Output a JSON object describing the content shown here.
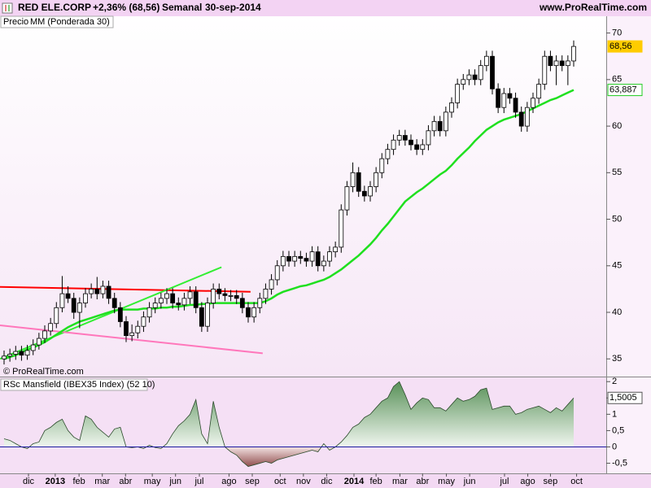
{
  "header": {
    "name": "RED ELE.CORP",
    "change": "+2,36% (68,56)",
    "period": "Semanal",
    "date": "30-sep-2014",
    "site": "www.ProRealTime.com"
  },
  "chart_data": [
    {
      "type": "candlestick",
      "price_name": "Precio",
      "watermark": "© ProRealTime.com",
      "xlim": [
        -0.7,
        103.6
      ],
      "ylim": [
        33.1,
        71.8
      ],
      "yticks": [
        35,
        40,
        45,
        50,
        55,
        60,
        65,
        70
      ],
      "open": [
        35.0,
        35.3,
        35.5,
        35.8,
        35.4,
        35.9,
        36.5,
        37.2,
        38.0,
        38.8,
        40.5,
        42.0,
        41.5,
        40.0,
        41.0,
        42.0,
        42.5,
        42.0,
        42.8,
        41.5,
        40.5,
        39.0,
        37.5,
        37.8,
        38.5,
        39.5,
        40.5,
        41.0,
        41.5,
        42.0,
        41.0,
        40.8,
        41.5,
        42.2,
        40.5,
        38.5,
        41.0,
        42.5,
        42.0,
        41.8,
        41.8,
        41.5,
        40.5,
        39.5,
        40.5,
        41.5,
        42.5,
        43.5,
        45.0,
        46.0,
        45.5,
        46.0,
        45.8,
        45.5,
        46.5,
        45.0,
        45.5,
        46.5,
        47.0,
        51.0,
        53.5,
        55.0,
        53.0,
        52.5,
        53.5,
        55.0,
        56.5,
        57.5,
        58.5,
        59.0,
        58.5,
        58.0,
        57.5,
        58.0,
        59.5,
        60.5,
        59.5,
        61.5,
        62.5,
        64.5,
        65.0,
        65.5,
        65.0,
        66.5,
        67.5,
        64.0,
        62.0,
        63.5,
        63.0,
        61.5,
        60.0,
        62.0,
        63.0,
        64.5,
        67.5,
        66.5,
        67.0,
        66.5,
        67.0
      ],
      "close": [
        35.3,
        35.5,
        35.8,
        35.4,
        35.9,
        36.5,
        37.2,
        38.0,
        38.8,
        40.5,
        42.0,
        41.5,
        40.0,
        41.0,
        42.0,
        42.5,
        42.0,
        42.8,
        41.5,
        40.5,
        39.0,
        37.5,
        37.8,
        38.5,
        39.5,
        40.5,
        41.0,
        41.5,
        42.0,
        41.0,
        40.8,
        41.5,
        42.2,
        40.5,
        38.5,
        41.0,
        42.5,
        42.0,
        41.8,
        41.8,
        41.5,
        40.5,
        39.5,
        40.5,
        41.5,
        42.5,
        43.5,
        45.0,
        46.0,
        45.5,
        46.0,
        45.8,
        45.5,
        46.5,
        45.0,
        45.5,
        46.5,
        47.0,
        51.0,
        53.5,
        55.0,
        53.0,
        52.5,
        53.5,
        55.0,
        56.5,
        57.5,
        58.5,
        59.0,
        58.5,
        58.0,
        57.5,
        58.0,
        59.5,
        60.5,
        59.5,
        61.5,
        62.5,
        64.5,
        65.0,
        65.5,
        65.0,
        66.5,
        67.5,
        64.0,
        62.0,
        63.5,
        63.0,
        61.5,
        60.0,
        62.0,
        63.0,
        64.5,
        67.5,
        66.5,
        67.0,
        66.5,
        67.0,
        68.56
      ],
      "high": [
        35.9,
        36.1,
        36.4,
        36.4,
        36.5,
        37.1,
        37.8,
        38.6,
        39.4,
        41.1,
        43.9,
        42.8,
        42.1,
        41.6,
        42.6,
        43.1,
        43.8,
        43.4,
        43.4,
        42.1,
        41.1,
        39.6,
        38.7,
        39.1,
        40.1,
        41.1,
        41.6,
        42.1,
        42.6,
        42.6,
        41.6,
        42.1,
        42.8,
        42.8,
        41.1,
        41.6,
        43.1,
        43.1,
        42.6,
        42.4,
        42.4,
        42.1,
        41.1,
        41.1,
        42.1,
        43.1,
        44.1,
        45.6,
        46.6,
        46.6,
        46.6,
        46.6,
        46.4,
        47.1,
        47.1,
        46.1,
        47.1,
        47.6,
        51.6,
        54.1,
        56.1,
        55.6,
        53.6,
        54.1,
        55.6,
        57.1,
        58.1,
        59.1,
        59.6,
        59.6,
        59.1,
        58.6,
        58.6,
        60.1,
        61.1,
        61.1,
        62.1,
        63.1,
        65.1,
        65.6,
        66.1,
        66.1,
        67.1,
        68.1,
        68.1,
        64.6,
        64.1,
        64.1,
        63.6,
        62.1,
        62.6,
        63.6,
        65.1,
        68.1,
        68.1,
        67.6,
        67.6,
        67.6,
        69.2
      ],
      "low": [
        34.4,
        34.7,
        34.9,
        34.8,
        34.9,
        35.4,
        36.0,
        36.7,
        37.5,
        38.3,
        40.0,
        41.0,
        39.3,
        38.3,
        40.5,
        41.5,
        41.4,
        41.5,
        40.9,
        39.9,
        38.4,
        36.8,
        36.9,
        37.2,
        37.9,
        38.9,
        39.9,
        40.4,
        40.9,
        40.4,
        40.2,
        40.2,
        40.9,
        39.9,
        37.9,
        37.9,
        40.4,
        41.4,
        41.2,
        41.2,
        40.9,
        39.9,
        38.9,
        38.9,
        39.9,
        40.9,
        41.9,
        42.9,
        44.4,
        44.9,
        44.9,
        45.2,
        44.9,
        44.9,
        44.4,
        44.4,
        44.9,
        45.9,
        46.4,
        50.4,
        52.9,
        52.4,
        51.9,
        51.9,
        52.9,
        54.4,
        55.9,
        56.9,
        57.9,
        57.9,
        57.4,
        56.9,
        56.9,
        57.4,
        58.9,
        58.9,
        58.9,
        60.9,
        61.9,
        63.9,
        64.4,
        64.4,
        64.4,
        65.9,
        63.4,
        61.4,
        61.4,
        62.4,
        60.9,
        59.4,
        59.4,
        61.4,
        62.4,
        63.9,
        65.9,
        64.4,
        65.9,
        64.4,
        66.4
      ],
      "series": [
        {
          "name": "MM (Ponderada 30)",
          "color": "#1fe01f",
          "values": [
            35.0,
            35.2,
            35.4,
            35.7,
            36.0,
            36.2,
            36.5,
            36.8,
            37.2,
            37.6,
            38.0,
            38.4,
            38.7,
            39.0,
            39.2,
            39.4,
            39.6,
            39.8,
            40.0,
            40.2,
            40.3,
            40.3,
            40.3,
            40.3,
            40.4,
            40.4,
            40.4,
            40.5,
            40.5,
            40.6,
            40.6,
            40.7,
            40.8,
            40.8,
            40.9,
            40.9,
            41.0,
            41.0,
            41.0,
            41.0,
            41.0,
            41.0,
            41.0,
            41.0,
            41.0,
            41.2,
            41.5,
            41.9,
            42.2,
            42.4,
            42.6,
            42.8,
            42.9,
            43.1,
            43.3,
            43.5,
            43.8,
            44.2,
            44.6,
            45.1,
            45.6,
            46.1,
            46.7,
            47.3,
            48.0,
            48.8,
            49.5,
            50.3,
            51.1,
            51.9,
            52.4,
            52.9,
            53.3,
            53.8,
            54.3,
            54.8,
            55.2,
            55.8,
            56.5,
            57.1,
            57.7,
            58.4,
            59.0,
            59.6,
            60.0,
            60.4,
            60.7,
            60.9,
            61.1,
            61.3,
            61.6,
            61.9,
            62.2,
            62.5,
            62.8,
            63.0,
            63.3,
            63.6,
            63.887
          ]
        }
      ],
      "trendlines": [
        {
          "color": "#ff0000",
          "x": [
            -0.7,
            42.4
          ],
          "y": [
            42.73,
            42.21
          ]
        },
        {
          "color": "#33ee33",
          "x": [
            -0.7,
            37.4
          ],
          "y": [
            35.0,
            44.85
          ]
        },
        {
          "color": "#ff77bb",
          "x": [
            -0.7,
            44.5
          ],
          "y": [
            38.6,
            35.6
          ]
        }
      ],
      "price_labels": [
        {
          "value": 68.56,
          "label": "68,56",
          "color": "#ffcc00"
        },
        {
          "value": 63.887,
          "label": "63,887",
          "color": "#22cc22"
        }
      ]
    },
    {
      "type": "area",
      "title": "RSc Mansfield (IBEX35 Index) (52 10)",
      "xlim": [
        -0.7,
        103.6
      ],
      "ylim": [
        -0.81,
        2.13
      ],
      "yticks": [
        2,
        {
          "value": 1.5,
          "label": "1,5"
        },
        1,
        {
          "value": 0.5,
          "label": "0,5"
        },
        0,
        {
          "value": -0.5,
          "label": "-0,5"
        }
      ],
      "xticks": [
        {
          "value": 4.2,
          "label": "dic"
        },
        {
          "value": 8.8,
          "label": "2013"
        },
        {
          "value": 12.9,
          "label": "feb"
        },
        {
          "value": 16.9,
          "label": "mar"
        },
        {
          "value": 20.9,
          "label": "abr"
        },
        {
          "value": 25.5,
          "label": "may"
        },
        {
          "value": 29.5,
          "label": "jun"
        },
        {
          "value": 33.6,
          "label": "jul"
        },
        {
          "value": 38.7,
          "label": "ago"
        },
        {
          "value": 42.7,
          "label": "sep"
        },
        {
          "value": 47.5,
          "label": "oct"
        },
        {
          "value": 51.5,
          "label": "nov"
        },
        {
          "value": 55.5,
          "label": "dic"
        },
        {
          "value": 60.2,
          "label": "2014"
        },
        {
          "value": 64.0,
          "label": "feb"
        },
        {
          "value": 68.1,
          "label": "mar"
        },
        {
          "value": 72.0,
          "label": "abr"
        },
        {
          "value": 76.1,
          "label": "may"
        },
        {
          "value": 80.1,
          "label": "jun"
        },
        {
          "value": 86.1,
          "label": "jul"
        },
        {
          "value": 90.1,
          "label": "ago"
        },
        {
          "value": 94.0,
          "label": "sep"
        },
        {
          "value": 98.5,
          "label": "oct"
        }
      ],
      "values": [
        0.25,
        0.2,
        0.1,
        0.0,
        -0.05,
        0.1,
        0.15,
        0.5,
        0.6,
        0.75,
        0.85,
        0.5,
        0.3,
        0.2,
        0.95,
        0.85,
        0.6,
        0.45,
        0.3,
        0.55,
        0.6,
        0.0,
        -0.02,
        0.0,
        -0.05,
        0.05,
        -0.02,
        -0.05,
        0.1,
        0.4,
        0.65,
        0.8,
        1.0,
        1.45,
        0.4,
        0.1,
        1.4,
        0.6,
        0.0,
        -0.15,
        -0.25,
        -0.45,
        -0.6,
        -0.55,
        -0.5,
        -0.45,
        -0.5,
        -0.4,
        -0.35,
        -0.3,
        -0.25,
        -0.2,
        -0.15,
        -0.1,
        -0.15,
        0.1,
        -0.1,
        0.0,
        0.15,
        0.35,
        0.6,
        0.7,
        0.9,
        1.0,
        1.2,
        1.4,
        1.5,
        1.85,
        2.0,
        1.6,
        1.15,
        1.35,
        1.5,
        1.45,
        1.2,
        1.2,
        1.1,
        1.3,
        1.5,
        1.4,
        1.45,
        1.55,
        1.75,
        1.8,
        1.15,
        1.2,
        1.25,
        1.25,
        1.0,
        1.05,
        1.15,
        1.2,
        1.25,
        1.15,
        1.05,
        1.2,
        1.1,
        1.3,
        1.5005
      ],
      "last_label": {
        "value": 1.5005,
        "label": "1,5005"
      }
    }
  ]
}
